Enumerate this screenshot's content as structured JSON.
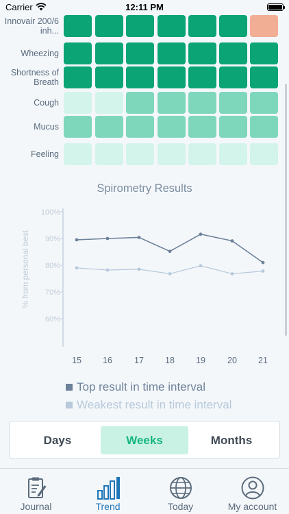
{
  "status_bar": {
    "carrier": "Carrier",
    "time": "12:11 PM"
  },
  "heatmap": {
    "rows": [
      {
        "label": "Innovair 200/6 inh...",
        "levels": [
          3,
          3,
          3,
          3,
          3,
          3,
          "alert"
        ]
      },
      {
        "label": "Wheezing",
        "levels": [
          3,
          3,
          3,
          3,
          3,
          3,
          3
        ]
      },
      {
        "label": "Shortness of Breath",
        "levels": [
          3,
          3,
          3,
          3,
          3,
          3,
          3
        ]
      },
      {
        "label": "Cough",
        "levels": [
          1,
          1,
          2,
          2,
          2,
          2,
          2
        ]
      },
      {
        "label": "Mucus",
        "levels": [
          2,
          2,
          2,
          2,
          2,
          2,
          2
        ]
      },
      {
        "label": "Feeling",
        "levels": [
          1,
          1,
          1,
          1,
          1,
          1,
          1
        ]
      }
    ],
    "colors": {
      "3": "#0ba474",
      "2": "#7ed7ba",
      "1": "#d3f4ea",
      "alert": "#f2ae94"
    }
  },
  "chart_data": {
    "type": "line",
    "title": "Spirometry Results",
    "ylabel": "% from personal best",
    "xlabel": "",
    "x": [
      15,
      16,
      17,
      18,
      19,
      20,
      21
    ],
    "yticks": [
      "100%",
      "90%",
      "80%",
      "70%",
      "60%"
    ],
    "ylim": [
      55,
      100
    ],
    "grid": false,
    "series": [
      {
        "name": "Top result in time interval",
        "color": "#6d829a",
        "values": [
          89.5,
          90,
          90.4,
          85.2,
          91.6,
          89.1,
          81
        ]
      },
      {
        "name": "Weakest result in time interval",
        "color": "#b7c9db",
        "values": [
          79,
          78.2,
          78.5,
          76.8,
          79.8,
          76.8,
          77.8
        ]
      }
    ]
  },
  "segmented": {
    "items": [
      {
        "label": "Days"
      },
      {
        "label": "Weeks"
      },
      {
        "label": "Months"
      }
    ],
    "selected": 1
  },
  "tabbar": {
    "items": [
      {
        "label": "Journal",
        "icon": "journal-icon"
      },
      {
        "label": "Trend",
        "icon": "trend-icon"
      },
      {
        "label": "Today",
        "icon": "globe-icon"
      },
      {
        "label": "My account",
        "icon": "account-icon"
      }
    ],
    "active": 1
  }
}
